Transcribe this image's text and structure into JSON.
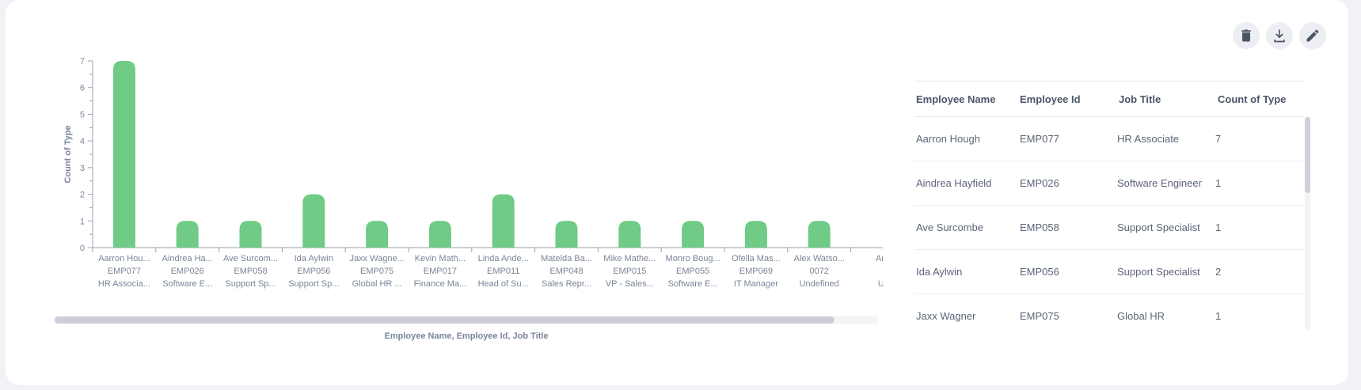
{
  "toolbar": {
    "icons": [
      "trash-icon",
      "download-icon",
      "pencil-icon"
    ]
  },
  "chart_data": {
    "type": "bar",
    "ylabel": "Count of Type",
    "xlabel": "Employee Name, Employee Id, Job Title",
    "ylim": [
      0,
      7
    ],
    "yticks": [
      0,
      1,
      2,
      3,
      4,
      5,
      6,
      7
    ],
    "bar_color": "#6fcb85",
    "categories": [
      [
        "Aarron Hou...",
        "EMP077",
        "HR Associa..."
      ],
      [
        "Aindrea Ha...",
        "EMP026",
        "Software E..."
      ],
      [
        "Ave Surcom...",
        "EMP058",
        "Support Sp..."
      ],
      [
        "Ida Aylwin",
        "EMP056",
        "Support Sp..."
      ],
      [
        "Jaxx Wagne...",
        "EMP075",
        "Global HR ..."
      ],
      [
        "Kevin Math...",
        "EMP017",
        "Finance Ma..."
      ],
      [
        "Linda Ande...",
        "EMP011",
        "Head of Su..."
      ],
      [
        "Matelda Ba...",
        "EMP048",
        "Sales Repr..."
      ],
      [
        "Mike Mathe...",
        "EMP015",
        "VP - Sales..."
      ],
      [
        "Monro Boug...",
        "EMP055",
        "Software E..."
      ],
      [
        "Ofella Mas...",
        "EMP069",
        "IT Manager"
      ],
      [
        "Alex Watso...",
        "0072",
        "Undefined"
      ],
      [
        "Are",
        "",
        "Ur"
      ]
    ],
    "values": [
      7,
      1,
      1,
      2,
      1,
      1,
      2,
      1,
      1,
      1,
      1,
      1,
      null
    ]
  },
  "table": {
    "headers": [
      "Employee Name",
      "Employee Id",
      "Job Title",
      "Count of Type"
    ],
    "rows": [
      {
        "name": "Aarron Hough",
        "id": "EMP077",
        "title": "HR Associate",
        "count": "7"
      },
      {
        "name": "Aindrea Hayfield",
        "id": "EMP026",
        "title": "Software Engineer",
        "count": "1"
      },
      {
        "name": "Ave Surcombe",
        "id": "EMP058",
        "title": "Support Specialist",
        "count": "1"
      },
      {
        "name": "Ida Aylwin",
        "id": "EMP056",
        "title": "Support Specialist",
        "count": "2"
      },
      {
        "name": "Jaxx Wagner",
        "id": "EMP075",
        "title": "Global HR",
        "count": "1"
      }
    ]
  }
}
